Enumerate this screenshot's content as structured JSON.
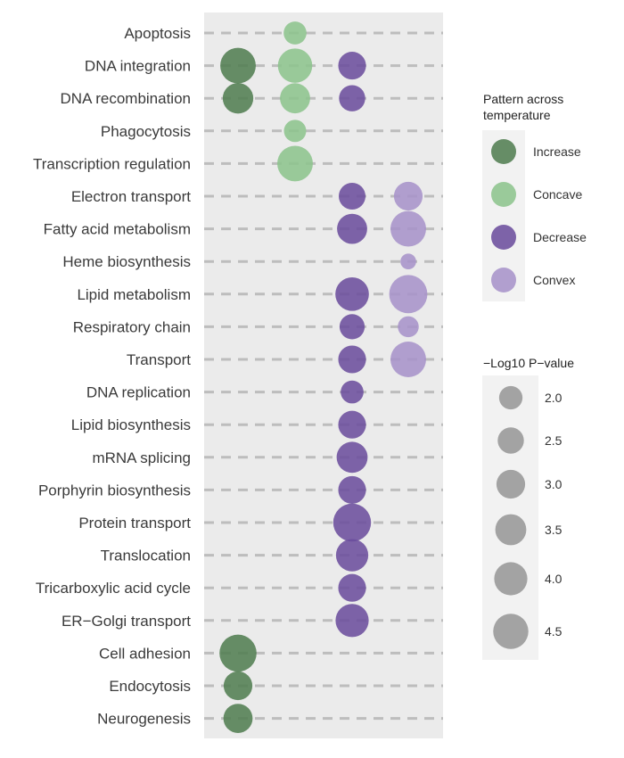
{
  "chart_data": {
    "type": "bubble-dotplot",
    "title": "",
    "xlabel": "",
    "ylabel": "",
    "columns": [
      "Increase",
      "Concave",
      "Decrease",
      "Convex"
    ],
    "terms": [
      "Apoptosis",
      "DNA integration",
      "DNA recombination",
      "Phagocytosis",
      "Transcription regulation",
      "Electron transport",
      "Fatty acid metabolism",
      "Heme biosynthesis",
      "Lipid metabolism",
      "Respiratory chain",
      "Transport",
      "DNA replication",
      "Lipid biosynthesis",
      "mRNA splicing",
      "Porphyrin biosynthesis",
      "Protein transport",
      "Translocation",
      "Tricarboxylic acid cycle",
      "ER−Golgi transport",
      "Cell adhesion",
      "Endocytosis",
      "Neurogenesis"
    ],
    "points": [
      {
        "term": "Apoptosis",
        "pattern": "Concave",
        "neglog10p": 1.9
      },
      {
        "term": "DNA integration",
        "pattern": "Increase",
        "neglog10p": 4.6
      },
      {
        "term": "DNA integration",
        "pattern": "Concave",
        "neglog10p": 4.3
      },
      {
        "term": "DNA integration",
        "pattern": "Decrease",
        "neglog10p": 2.8
      },
      {
        "term": "DNA recombination",
        "pattern": "Increase",
        "neglog10p": 3.4
      },
      {
        "term": "DNA recombination",
        "pattern": "Concave",
        "neglog10p": 3.3
      },
      {
        "term": "DNA recombination",
        "pattern": "Decrease",
        "neglog10p": 2.5
      },
      {
        "term": "Phagocytosis",
        "pattern": "Concave",
        "neglog10p": 1.8
      },
      {
        "term": "Transcription regulation",
        "pattern": "Concave",
        "neglog10p": 4.6
      },
      {
        "term": "Electron transport",
        "pattern": "Decrease",
        "neglog10p": 2.6
      },
      {
        "term": "Electron transport",
        "pattern": "Convex",
        "neglog10p": 3.0
      },
      {
        "term": "Fatty acid metabolism",
        "pattern": "Decrease",
        "neglog10p": 3.3
      },
      {
        "term": "Fatty acid metabolism",
        "pattern": "Convex",
        "neglog10p": 4.6
      },
      {
        "term": "Heme biosynthesis",
        "pattern": "Convex",
        "neglog10p": 0.9
      },
      {
        "term": "Lipid metabolism",
        "pattern": "Decrease",
        "neglog10p": 4.1
      },
      {
        "term": "Lipid metabolism",
        "pattern": "Convex",
        "neglog10p": 5.3
      },
      {
        "term": "Respiratory chain",
        "pattern": "Decrease",
        "neglog10p": 2.3
      },
      {
        "term": "Respiratory chain",
        "pattern": "Convex",
        "neglog10p": 1.6
      },
      {
        "term": "Transport",
        "pattern": "Decrease",
        "neglog10p": 2.8
      },
      {
        "term": "Transport",
        "pattern": "Convex",
        "neglog10p": 4.6
      },
      {
        "term": "DNA replication",
        "pattern": "Decrease",
        "neglog10p": 1.9
      },
      {
        "term": "Lipid biosynthesis",
        "pattern": "Decrease",
        "neglog10p": 2.8
      },
      {
        "term": "mRNA splicing",
        "pattern": "Decrease",
        "neglog10p": 3.5
      },
      {
        "term": "Porphyrin biosynthesis",
        "pattern": "Decrease",
        "neglog10p": 2.8
      },
      {
        "term": "Protein transport",
        "pattern": "Decrease",
        "neglog10p": 5.2
      },
      {
        "term": "Translocation",
        "pattern": "Decrease",
        "neglog10p": 3.8
      },
      {
        "term": "Tricarboxylic acid cycle",
        "pattern": "Decrease",
        "neglog10p": 2.8
      },
      {
        "term": "ER−Golgi transport",
        "pattern": "Decrease",
        "neglog10p": 4.0
      },
      {
        "term": "Cell adhesion",
        "pattern": "Increase",
        "neglog10p": 5.0
      },
      {
        "term": "Endocytosis",
        "pattern": "Increase",
        "neglog10p": 3.0
      },
      {
        "term": "Neurogenesis",
        "pattern": "Increase",
        "neglog10p": 3.1
      }
    ],
    "color_legend": {
      "title_lines": [
        "Pattern across",
        "temperature"
      ],
      "entries": [
        {
          "label": "Increase",
          "color": "#4f7d4f"
        },
        {
          "label": "Concave",
          "color": "#8cc48c"
        },
        {
          "label": "Decrease",
          "color": "#6a4c9c"
        },
        {
          "label": "Convex",
          "color": "#a792c9"
        }
      ]
    },
    "size_legend": {
      "title": "−Log10 P−value",
      "values": [
        2.0,
        2.5,
        3.0,
        3.5,
        4.0,
        4.5
      ],
      "labels": [
        "2.0",
        "2.5",
        "3.0",
        "3.5",
        "4.0",
        "4.5"
      ]
    },
    "colors": {
      "panel": "#ebebeb",
      "legend_box": "#f2f2f2",
      "gridline": "#bdbdbd",
      "size_legend_dot": "#a3a3a3"
    },
    "gridlines": "dashed-horizontal",
    "legend_position": "right"
  }
}
